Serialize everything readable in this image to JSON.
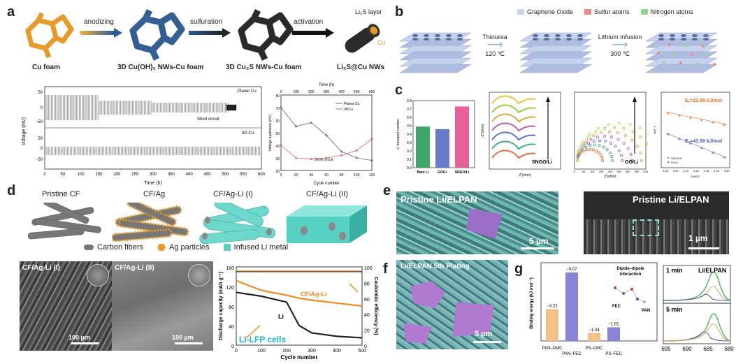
{
  "panels": {
    "a": {
      "label": "a",
      "steps": [
        "anodizing",
        "sulfuration",
        "activation"
      ],
      "captions": [
        "Cu foam",
        "3D Cu(OH)₂ NWs-Cu foam",
        "3D Cu₂S NWs-Cu foam",
        "Li₂S@Cu NWs"
      ],
      "li2s_layer": "Li₂S layer",
      "cu": "Cu",
      "plot1": {
        "ylabel": "Voltage (mV)",
        "xlabel": "Time (h)",
        "top_label": "Planer Cu",
        "bottom_label": "3D Cu",
        "annotation": "Short circuit",
        "yticks": [
          "50",
          "0",
          "-50",
          "50",
          "0",
          "-50"
        ],
        "xticks": [
          "0",
          "50",
          "100",
          "150",
          "200",
          "250",
          "300",
          "350",
          "400",
          "450",
          "500",
          "550",
          "600"
        ]
      },
      "plot2": {
        "top_axis": "Time (h)",
        "top_ticks": [
          "0",
          "100",
          "200",
          "300",
          "400",
          "500",
          "600"
        ],
        "xlabel": "Cycle number",
        "xticks": [
          "0",
          "20",
          "40",
          "60",
          "80",
          "100",
          "120"
        ],
        "ylabel": "Voltage hysteresis (mV)",
        "yticks": [
          "80",
          "70",
          "60",
          "50",
          "40",
          "30",
          "20"
        ],
        "legend": [
          "Planar Cu",
          "3DCu"
        ],
        "annotation": "Short circuit"
      }
    },
    "b": {
      "label": "b",
      "legend": [
        "Graphene Oxide",
        "Sulfur atoms",
        "Nitrogen atoms"
      ],
      "step1": [
        "Thiourea",
        "120 ℃"
      ],
      "step2": [
        "Lithium infusion",
        "300 ℃"
      ]
    },
    "c": {
      "label": "c",
      "bar": {
        "ylabel": "Li transport number",
        "categories": [
          "Bare Li",
          "GO/Li",
          "SNGO/Li"
        ],
        "yticks": [
          "0.8",
          "0.7",
          "0.6",
          "0.5",
          "0.4",
          "0.3",
          "0.2",
          "0.1",
          "0.0"
        ]
      },
      "nyq1": {
        "label": "SNGO/Li",
        "xlabel": "Z'(ohm)",
        "ylabel": "-Z''(ohm)"
      },
      "nyq2": {
        "label": "GO/Li",
        "xlabel": "Z'(ohm)",
        "ylabel": "-Z''(ohm)",
        "xticks": [
          "0",
          "50",
          "100",
          "150",
          "200",
          "250",
          "300",
          "350",
          "400"
        ]
      },
      "arr": {
        "ea1": "Eₐ=22.98 kJ/mol",
        "ea2": "Eₐ=43.98 kJ/mol",
        "legend": [
          "SNGO/Li",
          "GO/Li"
        ],
        "xlabel": "1000/T",
        "ylabel": "ln(R⁻¹)",
        "xticks": [
          "3.00",
          "3.05",
          "3.10",
          "3.15",
          "3.20",
          "3.25",
          "3.30"
        ]
      }
    },
    "d": {
      "label": "d",
      "titles": [
        "Pristine CF",
        "CF/Ag",
        "CF/Ag-Li (I)",
        "CF/Ag-Li (II)"
      ],
      "legend": [
        "Carbon fibers",
        "Ag particles",
        "Infused Li metal"
      ],
      "sem1": {
        "title": "CF/Ag-Li (I)",
        "scale": "100 µm"
      },
      "sem2": {
        "title": "CF/Ag-Li (II)",
        "scale": "100 µm"
      },
      "plot": {
        "ylabel_left": "Discharge capacity (mAh g⁻¹)",
        "ylabel_right": "Coulombic efficiency (%)",
        "xlabel": "Cycle number",
        "xticks": [
          "0",
          "100",
          "200",
          "300",
          "400",
          "500"
        ],
        "yticks_left": [
          "160",
          "120",
          "80",
          "40",
          "0"
        ],
        "yticks_right": [
          "100",
          "80",
          "60",
          "40",
          "20",
          "0"
        ],
        "series": [
          "CF/Ag-Li",
          "Li"
        ],
        "cells": "Li-LFP cells"
      }
    },
    "e": {
      "label": "e",
      "sem1": {
        "title": "Pristine Li/ELPAN",
        "scale": "5 µm"
      },
      "sem2": {
        "title": "Pristine Li/ELPAN",
        "scale": "1 µm"
      }
    },
    "f": {
      "label": "f",
      "title": "Li/ELPAN 5th Plating",
      "scale": "5 µm"
    },
    "g": {
      "label": "g",
      "ylabel": "Binding energy (kJ mol⁻¹)",
      "categories": [
        "PAN–DMC",
        "PAN–FEC",
        "PS–DMC",
        "PS–FEC"
      ],
      "values": [
        "−4.22",
        "−9.07",
        "−1.04",
        "−1.81"
      ],
      "dipole": [
        "Dipole–dipole",
        "interaction"
      ],
      "fec": "FEC",
      "pan": "PAN",
      "xps_title": "Li/ELPAN",
      "xps_labels": [
        "1 min",
        "5 min"
      ],
      "xps_xticks": [
        "695",
        "690",
        "685",
        "680"
      ]
    }
  },
  "chart_data": [
    {
      "type": "bar",
      "title": "",
      "ylabel": "Li transport number",
      "categories": [
        "Bare Li",
        "GO/Li",
        "SNGO/Li"
      ],
      "values": [
        0.49,
        0.46,
        0.73
      ],
      "ylim": [
        0,
        0.8
      ]
    },
    {
      "type": "bar",
      "title": "",
      "ylabel": "Binding energy (kJ mol⁻¹)",
      "categories": [
        "PAN–DMC",
        "PAN–FEC",
        "PS–DMC",
        "PS–FEC"
      ],
      "values": [
        -4.22,
        -9.07,
        -1.04,
        -1.81
      ]
    },
    {
      "type": "line",
      "title": "",
      "xlabel": "Cycle number",
      "x": [
        0,
        20,
        40,
        60,
        80,
        100,
        120
      ],
      "series": [
        {
          "name": "Planar Cu",
          "values": [
            70,
            55,
            58,
            48,
            35,
            30,
            28
          ]
        },
        {
          "name": "3DCu",
          "values": [
            40,
            30,
            29,
            30,
            32,
            36,
            45
          ]
        }
      ],
      "ylim": [
        20,
        80
      ]
    },
    {
      "type": "line",
      "title": "",
      "xlabel": "Cycle number",
      "x": [
        0,
        100,
        200,
        250,
        300,
        400,
        500
      ],
      "series": [
        {
          "name": "CF/Ag-Li",
          "values": [
            132,
            112,
            102,
            96,
            92,
            86,
            80
          ]
        },
        {
          "name": "Li",
          "values": [
            108,
            100,
            88,
            40,
            25,
            18,
            15
          ]
        }
      ],
      "ylim": [
        0,
        160
      ]
    }
  ]
}
